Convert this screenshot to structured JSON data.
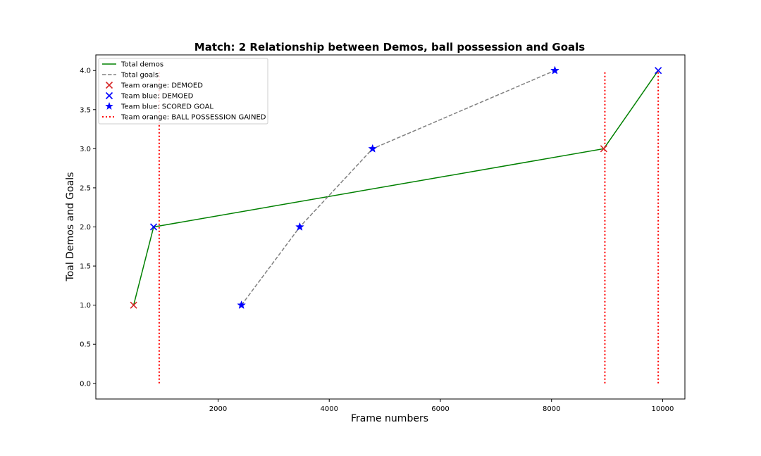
{
  "chart_data": {
    "type": "line",
    "title": "Match: 2 Relationship between Demos, ball possession and Goals",
    "xlabel": "Frame numbers",
    "ylabel": "Toal Demos and Goals",
    "xlim": [
      -200,
      10400
    ],
    "ylim": [
      -0.2,
      4.2
    ],
    "xticks": [
      2000,
      4000,
      6000,
      8000,
      10000
    ],
    "xtick_labels": [
      "2000",
      "4000",
      "6000",
      "8000",
      "10000"
    ],
    "yticks": [
      0.0,
      0.5,
      1.0,
      1.5,
      2.0,
      2.5,
      3.0,
      3.5,
      4.0
    ],
    "ytick_labels": [
      "0.0",
      "0.5",
      "1.0",
      "1.5",
      "2.0",
      "2.5",
      "3.0",
      "3.5",
      "4.0"
    ],
    "grid": false,
    "legend_position": "top-left",
    "series": [
      {
        "name": "Total demos",
        "kind": "line",
        "style": "solid",
        "color": "#008000",
        "x": [
          480,
          840,
          8940,
          9920
        ],
        "y": [
          1,
          2,
          3,
          4
        ]
      },
      {
        "name": "Total goals",
        "kind": "line",
        "style": "dashed",
        "color": "#808080",
        "x": [
          2420,
          3470,
          4780,
          8060
        ],
        "y": [
          1,
          2,
          3,
          4
        ]
      },
      {
        "name": "Team orange: DEMOED",
        "kind": "scatter",
        "marker": "x",
        "color": "#d62728",
        "x": [
          480,
          8940
        ],
        "y": [
          1,
          3
        ]
      },
      {
        "name": "Team blue: DEMOED",
        "kind": "scatter",
        "marker": "x",
        "color": "#0000ff",
        "x": [
          840,
          9920
        ],
        "y": [
          2,
          4
        ]
      },
      {
        "name": "Team blue: SCORED GOAL",
        "kind": "scatter",
        "marker": "star",
        "color": "#0000ff",
        "x": [
          2420,
          3470,
          4780,
          8060
        ],
        "y": [
          1,
          2,
          3,
          4
        ]
      },
      {
        "name": "Team orange: BALL POSSESSION GAINED",
        "kind": "vlines",
        "style": "dotted",
        "color": "#ff0000",
        "x": [
          940,
          8960,
          9920
        ],
        "ymin": [
          0,
          0,
          0
        ],
        "ymax": [
          4,
          4,
          4
        ]
      }
    ]
  }
}
